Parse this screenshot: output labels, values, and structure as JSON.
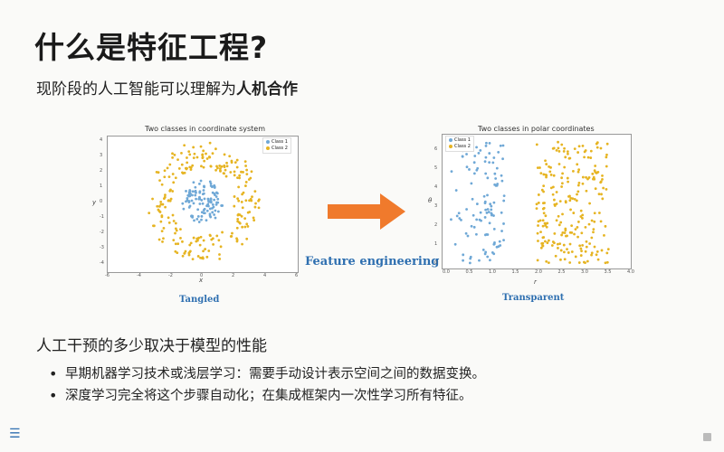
{
  "slide": {
    "title": "什么是特征工程?",
    "subtitle_prefix": "现阶段的人工智能可以理解为",
    "subtitle_bold": "人机合作",
    "section_heading": "人工干预的多少取决于模型的性能",
    "bullets": [
      "早期机器学习技术或浅层学习：需要手动设计表示空间之间的数据变换。",
      "深度学习完全将这个步骤自动化；在集成框架内一次性学习所有特征。"
    ],
    "menu_icon": "hamburger-menu-icon",
    "corner_icon": "slide-nav-icon"
  },
  "figure": {
    "arrow_label": "Feature engineering",
    "arrow_color": "#f07a2c",
    "left_caption": "Tangled",
    "right_caption": "Transparent"
  },
  "chart_data": [
    {
      "type": "scatter",
      "title": "Two classes in coordinate system",
      "xlabel": "x",
      "ylabel": "y",
      "xlim": [
        -6,
        6
      ],
      "ylim": [
        -4,
        4
      ],
      "legend": [
        "Class 1",
        "Class 2"
      ],
      "legend_placement": "top-right",
      "colors": {
        "Class 1": "#6fa8d6",
        "Class 2": "#e6b422"
      },
      "series": [
        {
          "name": "Class 1",
          "description_shape": "inner disc radius ~1.2"
        },
        {
          "name": "Class 2",
          "description_shape": "ring radius ~2 to ~3.6"
        }
      ],
      "x_ticks": [
        "-6",
        "-4",
        "-2",
        "0",
        "2",
        "4",
        "6"
      ],
      "y_ticks": [
        "4",
        "3",
        "2",
        "1",
        "0",
        "-1",
        "-2",
        "-3",
        "-4"
      ]
    },
    {
      "type": "scatter",
      "title": "Two classes in polar coordinates",
      "xlabel": "r",
      "ylabel": "θ",
      "xlim": [
        0,
        4
      ],
      "ylim": [
        0,
        6
      ],
      "legend": [
        "Class 1",
        "Class 2"
      ],
      "legend_placement": "top-left",
      "colors": {
        "Class 1": "#6fa8d6",
        "Class 2": "#e6b422"
      },
      "x_ticks": [
        "0.0",
        "0.5",
        "1.0",
        "1.5",
        "2.0",
        "2.5",
        "3.0",
        "3.5",
        "4.0"
      ],
      "y_ticks": [
        "6",
        "5",
        "4",
        "3",
        "2",
        "1",
        "0"
      ]
    }
  ]
}
